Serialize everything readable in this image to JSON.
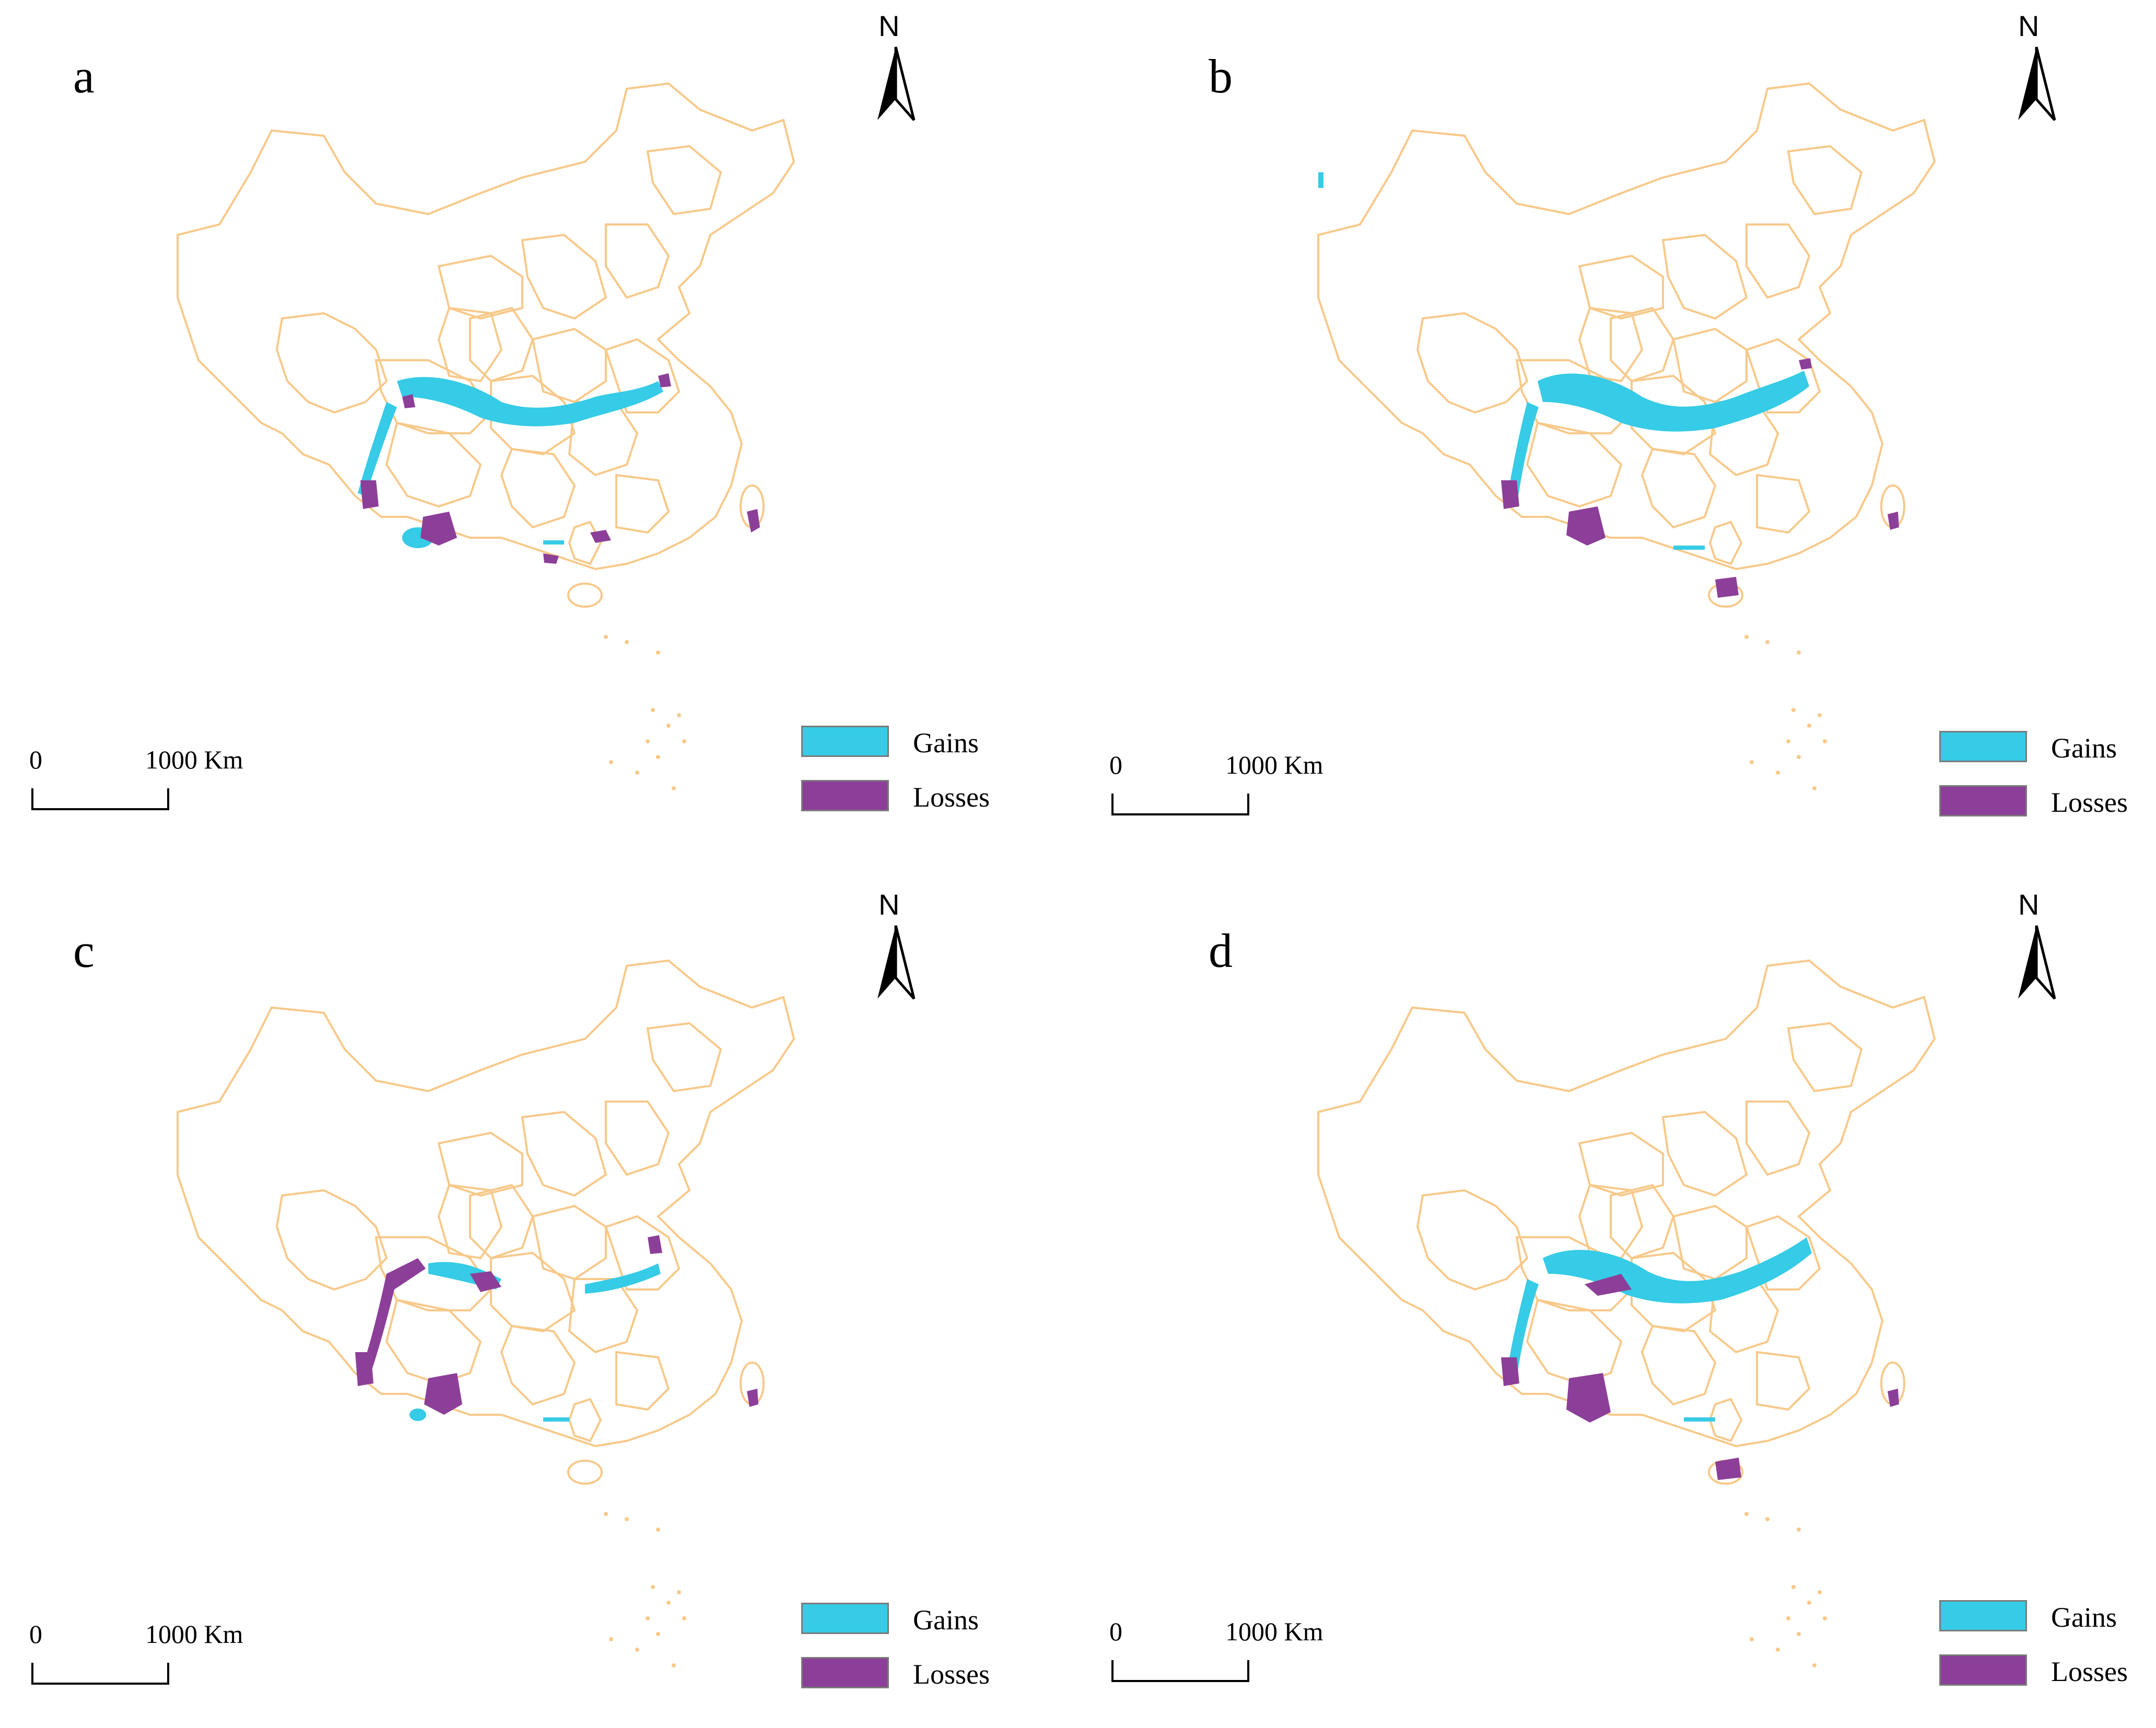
{
  "figure": {
    "panels": [
      {
        "id": "a",
        "label": "a"
      },
      {
        "id": "b",
        "label": "b"
      },
      {
        "id": "c",
        "label": "c"
      },
      {
        "id": "d",
        "label": "d"
      }
    ],
    "north_arrow": {
      "letter": "N"
    },
    "scale_bar": {
      "zero_label": "0",
      "max_label": "1000 Km"
    },
    "legend": {
      "items": [
        {
          "label": "Gains",
          "color": "#36cbe6"
        },
        {
          "label": "Losses",
          "color": "#8c3f98"
        }
      ]
    },
    "colors": {
      "boundary": "#f7c98a",
      "gains": "#36cbe6",
      "losses": "#8c3f98",
      "background": "#ffffff"
    }
  }
}
